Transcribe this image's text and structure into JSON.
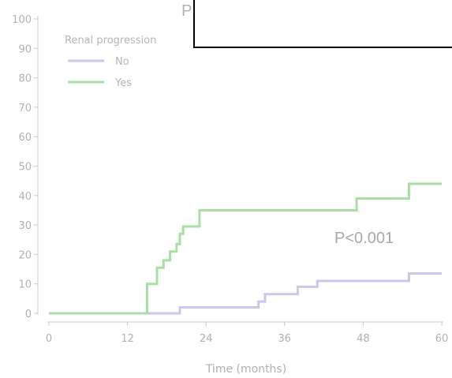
{
  "chart_data": {
    "type": "line",
    "step": true,
    "xlabel": "Time (months)",
    "ylabel": "",
    "xlim": [
      0,
      60
    ],
    "ylim": [
      0,
      100
    ],
    "xticks": [
      0,
      12,
      24,
      36,
      48,
      60
    ],
    "yticks": [
      0,
      10,
      20,
      30,
      40,
      50,
      60,
      70,
      80,
      90,
      100
    ],
    "legend": {
      "title": "Renal progression",
      "placement": "top-left"
    },
    "annotations": [
      "P<0.001"
    ],
    "partial_label": "P",
    "series": [
      {
        "name": "No",
        "color": "#c8c8ec",
        "points": [
          [
            0,
            0
          ],
          [
            20,
            0
          ],
          [
            20,
            2
          ],
          [
            32,
            2
          ],
          [
            32,
            4
          ],
          [
            33,
            4
          ],
          [
            33,
            6.5
          ],
          [
            38,
            6.5
          ],
          [
            38,
            9
          ],
          [
            41,
            9
          ],
          [
            41,
            11
          ],
          [
            55,
            11
          ],
          [
            55,
            13.5
          ],
          [
            60,
            13.5
          ]
        ]
      },
      {
        "name": "Yes",
        "color": "#a6e0a6",
        "points": [
          [
            0,
            0
          ],
          [
            15,
            0
          ],
          [
            15,
            10
          ],
          [
            16.5,
            10
          ],
          [
            16.5,
            15.5
          ],
          [
            17.5,
            15.5
          ],
          [
            17.5,
            18
          ],
          [
            18.5,
            18
          ],
          [
            18.5,
            21
          ],
          [
            19.5,
            21
          ],
          [
            19.5,
            23.5
          ],
          [
            20,
            23.5
          ],
          [
            20,
            27
          ],
          [
            20.5,
            27
          ],
          [
            20.5,
            29.5
          ],
          [
            23,
            29.5
          ],
          [
            23,
            35
          ],
          [
            47,
            35
          ],
          [
            47,
            39
          ],
          [
            55,
            39
          ],
          [
            55,
            44
          ],
          [
            60,
            44
          ]
        ]
      }
    ]
  }
}
